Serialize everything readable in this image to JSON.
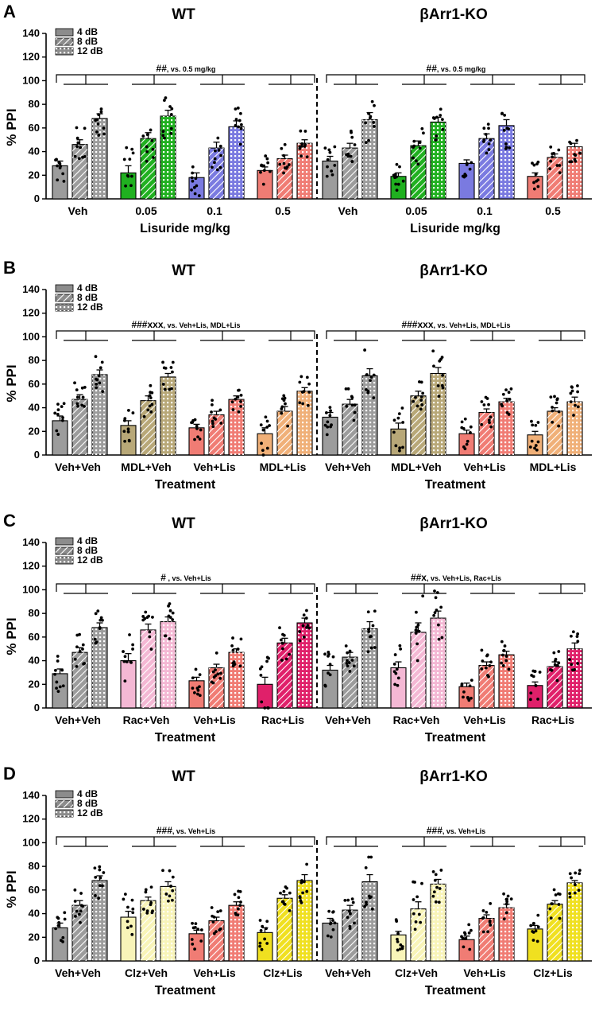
{
  "legend": [
    "4 dB",
    "8 dB",
    "12 dB"
  ],
  "chart_data": [
    {
      "panel": "A",
      "type": "bar",
      "ylabel": "% PPI",
      "ylim": [
        0,
        140
      ],
      "yticks": [
        0,
        20,
        40,
        60,
        80,
        100,
        120,
        140
      ],
      "groups": [
        {
          "title": "WT",
          "xlabel": "Lisuride mg/kg",
          "annotation_main": "##",
          "annotation_vs": ", vs. 0.5 mg/kg",
          "categories": [
            "Veh",
            "0.05",
            "0.1",
            "0.5"
          ],
          "colors": [
            "#9c9c9c",
            "#20b020",
            "#7a7ae0",
            "#f07c74"
          ],
          "series": [
            {
              "name": "4 dB",
              "values": [
                28,
                22,
                18,
                24
              ],
              "sem": [
                4,
                6,
                4,
                3
              ]
            },
            {
              "name": "8 dB",
              "values": [
                46,
                51,
                43,
                34
              ],
              "sem": [
                4,
                5,
                5,
                3
              ]
            },
            {
              "name": "12 dB",
              "values": [
                68,
                70,
                61,
                47
              ],
              "sem": [
                4,
                5,
                5,
                3
              ]
            }
          ]
        },
        {
          "title": "βArr1-KO",
          "xlabel": "Lisuride mg/kg",
          "annotation_main": "##",
          "annotation_vs": ", vs. 0.5 mg/kg",
          "categories": [
            "Veh",
            "0.05",
            "0.1",
            "0.5"
          ],
          "colors": [
            "#9c9c9c",
            "#20b020",
            "#7a7ae0",
            "#f07c74"
          ],
          "series": [
            {
              "name": "4 dB",
              "values": [
                32,
                19,
                30,
                19
              ],
              "sem": [
                4,
                3,
                3,
                3
              ]
            },
            {
              "name": "8 dB",
              "values": [
                43,
                45,
                51,
                35
              ],
              "sem": [
                4,
                4,
                4,
                3
              ]
            },
            {
              "name": "12 dB",
              "values": [
                67,
                65,
                62,
                44
              ],
              "sem": [
                6,
                4,
                5,
                3
              ]
            }
          ]
        }
      ]
    },
    {
      "panel": "B",
      "type": "bar",
      "ylabel": "% PPI",
      "ylim": [
        0,
        140
      ],
      "yticks": [
        0,
        20,
        40,
        60,
        80,
        100,
        120,
        140
      ],
      "groups": [
        {
          "title": "WT",
          "xlabel": "Treatment",
          "annotation_main": "###xxx",
          "annotation_vs": ", vs. Veh+Lis, MDL+Lis",
          "categories": [
            "Veh+Veh",
            "MDL+Veh",
            "Veh+Lis",
            "MDL+Lis"
          ],
          "colors": [
            "#9c9c9c",
            "#b8a878",
            "#f07c74",
            "#f0b078"
          ],
          "series": [
            {
              "name": "4 dB",
              "values": [
                29,
                25,
                23,
                18
              ],
              "sem": [
                4,
                4,
                3,
                5
              ]
            },
            {
              "name": "8 dB",
              "values": [
                47,
                46,
                34,
                37
              ],
              "sem": [
                4,
                4,
                3,
                4
              ]
            },
            {
              "name": "12 dB",
              "values": [
                68,
                66,
                47,
                54
              ],
              "sem": [
                4,
                3,
                3,
                3
              ]
            }
          ]
        },
        {
          "title": "βArr1-KO",
          "xlabel": "Treatment",
          "annotation_main": "###xxx",
          "annotation_vs": ", vs. Veh+Lis, MDL+Lis",
          "categories": [
            "Veh+Veh",
            "MDL+Veh",
            "Veh+Lis",
            "MDL+Lis"
          ],
          "colors": [
            "#9c9c9c",
            "#b8a878",
            "#f07c74",
            "#f0b078"
          ],
          "series": [
            {
              "name": "4 dB",
              "values": [
                32,
                22,
                18,
                17
              ],
              "sem": [
                4,
                5,
                3,
                3
              ]
            },
            {
              "name": "8 dB",
              "values": [
                43,
                50,
                36,
                37
              ],
              "sem": [
                4,
                4,
                3,
                3
              ]
            },
            {
              "name": "12 dB",
              "values": [
                67,
                69,
                45,
                45
              ],
              "sem": [
                6,
                5,
                3,
                4
              ]
            }
          ]
        }
      ]
    },
    {
      "panel": "C",
      "type": "bar",
      "ylabel": "% PPI",
      "ylim": [
        0,
        140
      ],
      "yticks": [
        0,
        20,
        40,
        60,
        80,
        100,
        120,
        140
      ],
      "groups": [
        {
          "title": "WT",
          "xlabel": "Treatment",
          "annotation_main": "#",
          "annotation_vs": " , vs. Veh+Lis",
          "categories": [
            "Veh+Veh",
            "Rac+Veh",
            "Veh+Lis",
            "Rac+Lis"
          ],
          "colors": [
            "#9c9c9c",
            "#f4b8d4",
            "#f07c74",
            "#e0206a"
          ],
          "series": [
            {
              "name": "4 dB",
              "values": [
                29,
                40,
                23,
                20
              ],
              "sem": [
                4,
                6,
                3,
                6
              ]
            },
            {
              "name": "8 dB",
              "values": [
                47,
                66,
                34,
                55
              ],
              "sem": [
                4,
                5,
                3,
                4
              ]
            },
            {
              "name": "12 dB",
              "values": [
                68,
                73,
                47,
                72
              ],
              "sem": [
                4,
                4,
                3,
                4
              ]
            }
          ]
        },
        {
          "title": "βArr1-KO",
          "xlabel": "Treatment",
          "annotation_main": "##x",
          "annotation_vs": ", vs. Veh+Lis, Rac+Lis",
          "categories": [
            "Veh+Veh",
            "Rac+Veh",
            "Veh+Lis",
            "Rac+Lis"
          ],
          "colors": [
            "#9c9c9c",
            "#f4b8d4",
            "#f07c74",
            "#e0206a"
          ],
          "series": [
            {
              "name": "4 dB",
              "values": [
                32,
                34,
                18,
                19
              ],
              "sem": [
                4,
                5,
                3,
                3
              ]
            },
            {
              "name": "8 dB",
              "values": [
                43,
                64,
                36,
                35
              ],
              "sem": [
                4,
                8,
                3,
                4
              ]
            },
            {
              "name": "12 dB",
              "values": [
                67,
                76,
                45,
                50
              ],
              "sem": [
                6,
                6,
                3,
                5
              ]
            }
          ]
        }
      ]
    },
    {
      "panel": "D",
      "type": "bar",
      "ylabel": "% PPI",
      "ylim": [
        0,
        140
      ],
      "yticks": [
        0,
        20,
        40,
        60,
        80,
        100,
        120,
        140
      ],
      "groups": [
        {
          "title": "WT",
          "xlabel": "Treatment",
          "annotation_main": "###",
          "annotation_vs": ", vs. Veh+Lis",
          "categories": [
            "Veh+Veh",
            "Clz+Veh",
            "Veh+Lis",
            "Clz+Lis"
          ],
          "colors": [
            "#9c9c9c",
            "#f8f4b8",
            "#f07c74",
            "#f0e020"
          ],
          "series": [
            {
              "name": "4 dB",
              "values": [
                28,
                37,
                23,
                24
              ],
              "sem": [
                4,
                5,
                3,
                4
              ]
            },
            {
              "name": "8 dB",
              "values": [
                47,
                51,
                34,
                53
              ],
              "sem": [
                4,
                3,
                3,
                3
              ]
            },
            {
              "name": "12 dB",
              "values": [
                68,
                63,
                47,
                68
              ],
              "sem": [
                4,
                4,
                3,
                5
              ]
            }
          ]
        },
        {
          "title": "βArr1-KO",
          "xlabel": "Treatment",
          "annotation_main": "###",
          "annotation_vs": ", vs. Veh+Lis",
          "categories": [
            "Veh+Veh",
            "Clz+Veh",
            "Veh+Lis",
            "Clz+Lis"
          ],
          "colors": [
            "#9c9c9c",
            "#f8f4b8",
            "#f07c74",
            "#f0e020"
          ],
          "series": [
            {
              "name": "4 dB",
              "values": [
                32,
                22,
                18,
                27
              ],
              "sem": [
                4,
                3,
                3,
                3
              ]
            },
            {
              "name": "8 dB",
              "values": [
                43,
                44,
                36,
                48
              ],
              "sem": [
                4,
                6,
                3,
                3
              ]
            },
            {
              "name": "12 dB",
              "values": [
                67,
                65,
                45,
                66
              ],
              "sem": [
                6,
                4,
                3,
                2
              ]
            }
          ]
        }
      ]
    }
  ]
}
